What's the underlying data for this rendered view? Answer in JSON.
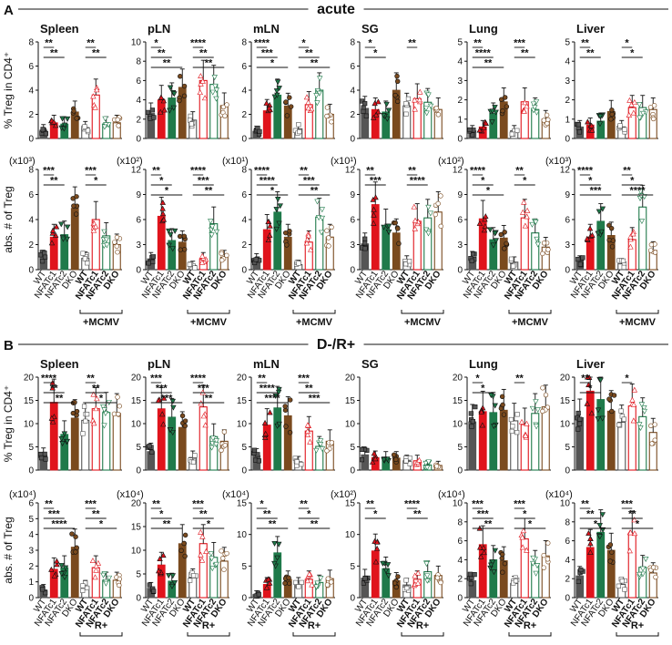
{
  "colors": {
    "WT": "#555555",
    "NFATc1": "#e0141c",
    "NFATc2": "#1f7a4a",
    "DKO": "#7a4a1e"
  },
  "groups": [
    "WT",
    "NFATc1",
    "NFATc2",
    "DKO",
    "WT",
    "NFATc1",
    "NFATc2",
    "DKO"
  ],
  "panels": [
    {
      "letter": "A",
      "title": "acute",
      "treatment_label": "+MCMV",
      "row1_ylabel": "% Treg in CD4⁺",
      "row2_ylabel": "abs. # of Treg",
      "row1": [
        {
          "organ": "Spleen",
          "ymax": 8,
          "ticks": [
            "0",
            "2",
            "4",
            "6",
            "8"
          ],
          "values": [
            0.7,
            1.3,
            1.2,
            2.2,
            0.9,
            3.6,
            1.2,
            1.3
          ],
          "sig": [
            "**",
            "**",
            "**",
            "**"
          ]
        },
        {
          "organ": "pLN",
          "ymax": 10,
          "ticks": [
            "0",
            "2",
            "4",
            "6",
            "8",
            "10"
          ],
          "values": [
            2.6,
            4.0,
            4.2,
            5.3,
            1.9,
            6.0,
            5.6,
            3.4
          ],
          "sig": [
            "*",
            "**",
            "**",
            "****",
            "**",
            "**"
          ]
        },
        {
          "organ": "mLN",
          "ymax": 8,
          "ticks": [
            "0",
            "2",
            "4",
            "6",
            "8"
          ],
          "values": [
            0.6,
            2.3,
            3.6,
            2.7,
            0.8,
            2.8,
            4.0,
            2.0
          ],
          "sig": [
            "****",
            "***",
            "*",
            "*",
            "**",
            "**"
          ]
        },
        {
          "organ": "SG",
          "ymax": 8,
          "ticks": [
            "0",
            "2",
            "4",
            "6",
            "8"
          ],
          "values": [
            2.5,
            2.4,
            2.2,
            4.0,
            2.7,
            3.3,
            3.0,
            2.4
          ],
          "sig": [
            "*",
            "*",
            "**"
          ]
        },
        {
          "organ": "Lung",
          "ymax": 5,
          "ticks": [
            "0",
            "1",
            "2",
            "3",
            "4",
            "5"
          ],
          "values": [
            0.4,
            0.6,
            1.3,
            1.9,
            0.4,
            1.9,
            1.5,
            1.0
          ],
          "sig": [
            "**",
            "****",
            "**",
            "***",
            "**"
          ]
        },
        {
          "organ": "Liver",
          "ymax": 5,
          "ticks": [
            "0",
            "1",
            "2",
            "3",
            "4",
            "5"
          ],
          "values": [
            0.6,
            0.7,
            0.9,
            1.4,
            0.6,
            1.6,
            1.6,
            1.5
          ],
          "sig": [
            "**",
            "**",
            "*",
            "*"
          ]
        }
      ],
      "row2": [
        {
          "mult": "(x10³)",
          "ymax": 8,
          "ticks": [
            "0",
            "2",
            "4",
            "6",
            "8"
          ],
          "values": [
            1.0,
            2.6,
            2.8,
            4.9,
            0.9,
            4.0,
            2.7,
            2.0
          ],
          "sig": [
            "***",
            "**",
            "***",
            "*"
          ]
        },
        {
          "mult": "(x10²)",
          "ymax": 12,
          "ticks": [
            "0",
            "3",
            "6",
            "9",
            "12"
          ],
          "values": [
            1.3,
            6.4,
            3.5,
            3.3,
            0.5,
            1.3,
            5.5,
            1.5
          ],
          "sig": [
            "**",
            "*",
            "*",
            "****",
            "***",
            "**"
          ]
        },
        {
          "mult": "(x10¹)",
          "ymax": 8,
          "ticks": [
            "0",
            "2",
            "4",
            "6",
            "8"
          ],
          "values": [
            0.8,
            3.2,
            4.6,
            2.6,
            0.4,
            2.2,
            4.2,
            2.6
          ],
          "sig": [
            "****",
            "****",
            "*",
            "**",
            "***",
            "**"
          ]
        },
        {
          "mult": "(x10¹)",
          "ymax": 12,
          "ticks": [
            "0",
            "3",
            "6",
            "9",
            "12"
          ],
          "values": [
            3.1,
            7.8,
            5.3,
            4.4,
            1.0,
            5.8,
            6.2,
            6.9
          ],
          "sig": [
            "**",
            "***",
            "**",
            "****"
          ]
        },
        {
          "mult": "(x10²)",
          "ymax": 12,
          "ticks": [
            "0",
            "3",
            "6",
            "9",
            "12"
          ],
          "values": [
            1.4,
            6.1,
            3.6,
            3.8,
            0.9,
            6.2,
            4.4,
            2.7
          ],
          "sig": [
            "****",
            "*",
            "*",
            "**",
            "*"
          ]
        },
        {
          "mult": "(x10³)",
          "ymax": 12,
          "ticks": [
            "0",
            "3",
            "6",
            "9",
            "12"
          ],
          "values": [
            1.0,
            3.9,
            5.8,
            4.1,
            0.7,
            3.6,
            7.5,
            2.3
          ],
          "sig": [
            "****",
            "*",
            "***",
            "**",
            "*",
            "****"
          ]
        }
      ]
    },
    {
      "letter": "B",
      "title": "D-/R+",
      "treatment_label": "R+",
      "row1_ylabel": "% Treg in CD4⁺",
      "row2_ylabel": "abs. # of Treg",
      "row1": [
        {
          "organ": "Spleen",
          "ymax": 20,
          "ticks": [
            "0",
            "5",
            "10",
            "15",
            "20"
          ],
          "values": [
            3.2,
            14.6,
            7.7,
            11.2,
            10.7,
            13.2,
            12.4,
            12.2
          ],
          "sig": [
            "****",
            "**",
            "**",
            "**",
            "**",
            "*"
          ]
        },
        {
          "organ": "pLN",
          "ymax": 20,
          "ticks": [
            "0",
            "5",
            "10",
            "15",
            "20"
          ],
          "values": [
            4.0,
            13.2,
            11.4,
            9.2,
            2.7,
            13.6,
            7.2,
            6.2
          ],
          "sig": [
            "***",
            "***",
            "***",
            "****",
            "***",
            "**"
          ]
        },
        {
          "organ": "mLN",
          "ymax": 20,
          "ticks": [
            "0",
            "5",
            "10",
            "15",
            "20"
          ],
          "values": [
            3.1,
            9.7,
            13.4,
            11.7,
            1.8,
            8.4,
            5.1,
            6.2
          ],
          "sig": [
            "**",
            "****",
            "****",
            "***",
            "**",
            "***"
          ]
        },
        {
          "organ": "SG",
          "ymax": 20,
          "ticks": [
            "0",
            "5",
            "10",
            "15",
            "20"
          ],
          "values": [
            3.3,
            2.7,
            2.6,
            2.6,
            2.0,
            2.0,
            1.1,
            1.0
          ],
          "sig": []
        },
        {
          "organ": "Lung",
          "ymax": 20,
          "ticks": [
            "0",
            "5",
            "10",
            "15",
            "20"
          ],
          "values": [
            10.4,
            12.6,
            12.4,
            12.9,
            10.6,
            9.8,
            12.2,
            13.6
          ],
          "sig": [
            "*",
            "*",
            "**"
          ]
        },
        {
          "organ": "Liver",
          "ymax": 20,
          "ticks": [
            "0",
            "5",
            "10",
            "15",
            "20"
          ],
          "values": [
            11.3,
            17.0,
            15.2,
            12.7,
            10.3,
            13.8,
            11.5,
            8.1
          ],
          "sig": [
            "**",
            "*",
            "*"
          ]
        }
      ],
      "row2": [
        {
          "mult": "(x10⁴)",
          "ymax": 6,
          "ticks": [
            "0",
            "1",
            "2",
            "3",
            "4",
            "5",
            "6"
          ],
          "values": [
            0.5,
            1.8,
            1.9,
            3.2,
            0.7,
            1.9,
            1.1,
            1.1
          ],
          "sig": [
            "**",
            "***",
            "****",
            "***",
            "**",
            "*"
          ]
        },
        {
          "mult": "(x10⁴)",
          "ymax": 20,
          "ticks": [
            "0",
            "5",
            "10",
            "15",
            "20"
          ],
          "values": [
            2.0,
            6.9,
            3.5,
            11.4,
            4.2,
            11.4,
            8.5,
            7.7
          ],
          "sig": [
            "**",
            "*",
            "**",
            "***",
            "**",
            "*"
          ]
        },
        {
          "mult": "(x10⁴)",
          "ymax": 15,
          "ticks": [
            "0",
            "5",
            "10",
            "15"
          ],
          "values": [
            0.5,
            2.1,
            7.1,
            2.9,
            2.1,
            2.9,
            2.4,
            3.0
          ],
          "sig": [
            "*",
            "**",
            "**",
            "**",
            "*",
            "**"
          ]
        },
        {
          "mult": "(x10²)",
          "ymax": 15,
          "ticks": [
            "0",
            "5",
            "10",
            "15"
          ],
          "values": [
            3.1,
            7.4,
            4.6,
            2.7,
            2.0,
            2.9,
            4.1,
            3.5
          ],
          "sig": [
            "**",
            "*",
            "****",
            "**"
          ]
        },
        {
          "mult": "(x10⁴)",
          "ymax": 10,
          "ticks": [
            "0",
            "2",
            "4",
            "6",
            "8",
            "10"
          ],
          "values": [
            1.8,
            5.6,
            4.0,
            3.9,
            1.5,
            6.2,
            3.6,
            4.4
          ],
          "sig": [
            "***",
            "***",
            "**",
            "***",
            "*",
            "*"
          ]
        },
        {
          "mult": "(x10⁴)",
          "ymax": 10,
          "ticks": [
            "0",
            "2",
            "4",
            "6",
            "8",
            "10"
          ],
          "values": [
            2.3,
            5.3,
            6.9,
            5.0,
            1.4,
            6.8,
            3.2,
            2.6
          ],
          "sig": [
            "**",
            "**",
            "*",
            "***",
            "**",
            "*"
          ]
        }
      ]
    }
  ],
  "chart_data": [
    {
      "type": "bar",
      "title": "A  acute",
      "categories": [
        "WT",
        "NFATc1",
        "NFATc2",
        "DKO",
        "WT +MCMV",
        "NFATc1 +MCMV",
        "NFATc2 +MCMV",
        "DKO +MCMV"
      ],
      "ylabel": "% Treg in CD4⁺ / abs. # of Treg",
      "series": [
        {
          "name": "Spleen %Treg",
          "values": [
            0.7,
            1.3,
            1.2,
            2.2,
            0.9,
            3.6,
            1.2,
            1.3
          ]
        },
        {
          "name": "pLN %Treg",
          "values": [
            2.6,
            4.0,
            4.2,
            5.3,
            1.9,
            6.0,
            5.6,
            3.4
          ]
        },
        {
          "name": "mLN %Treg",
          "values": [
            0.6,
            2.3,
            3.6,
            2.7,
            0.8,
            2.8,
            4.0,
            2.0
          ]
        },
        {
          "name": "SG %Treg",
          "values": [
            2.5,
            2.4,
            2.2,
            4.0,
            2.7,
            3.3,
            3.0,
            2.4
          ]
        },
        {
          "name": "Lung %Treg",
          "values": [
            0.4,
            0.6,
            1.3,
            1.9,
            0.4,
            1.9,
            1.5,
            1.0
          ]
        },
        {
          "name": "Liver %Treg",
          "values": [
            0.6,
            0.7,
            0.9,
            1.4,
            0.6,
            1.6,
            1.6,
            1.5
          ]
        },
        {
          "name": "Spleen abs # (x10^3)",
          "values": [
            1.0,
            2.6,
            2.8,
            4.9,
            0.9,
            4.0,
            2.7,
            2.0
          ]
        },
        {
          "name": "pLN abs # (x10^2)",
          "values": [
            1.3,
            6.4,
            3.5,
            3.3,
            0.5,
            1.3,
            5.5,
            1.5
          ]
        },
        {
          "name": "mLN abs # (x10^1)",
          "values": [
            0.8,
            3.2,
            4.6,
            2.6,
            0.4,
            2.2,
            4.2,
            2.6
          ]
        },
        {
          "name": "SG abs # (x10^1)",
          "values": [
            3.1,
            7.8,
            5.3,
            4.4,
            1.0,
            5.8,
            6.2,
            6.9
          ]
        },
        {
          "name": "Lung abs # (x10^2)",
          "values": [
            1.4,
            6.1,
            3.6,
            3.8,
            0.9,
            6.2,
            4.4,
            2.7
          ]
        },
        {
          "name": "Liver abs # (x10^3)",
          "values": [
            1.0,
            3.9,
            5.8,
            4.1,
            0.7,
            3.6,
            7.5,
            2.3
          ]
        }
      ]
    },
    {
      "type": "bar",
      "title": "B  D-/R+",
      "categories": [
        "WT",
        "NFATc1",
        "NFATc2",
        "DKO",
        "WT R+",
        "NFATc1 R+",
        "NFATc2 R+",
        "DKO R+"
      ],
      "ylabel": "% Treg in CD4⁺ / abs. # of Treg",
      "series": [
        {
          "name": "Spleen %Treg",
          "values": [
            3.2,
            14.6,
            7.7,
            11.2,
            10.7,
            13.2,
            12.4,
            12.2
          ]
        },
        {
          "name": "pLN %Treg",
          "values": [
            4.0,
            13.2,
            11.4,
            9.2,
            2.7,
            13.6,
            7.2,
            6.2
          ]
        },
        {
          "name": "mLN %Treg",
          "values": [
            3.1,
            9.7,
            13.4,
            11.7,
            1.8,
            8.4,
            5.1,
            6.2
          ]
        },
        {
          "name": "SG %Treg",
          "values": [
            3.3,
            2.7,
            2.6,
            2.6,
            2.0,
            2.0,
            1.1,
            1.0
          ]
        },
        {
          "name": "Lung %Treg",
          "values": [
            10.4,
            12.6,
            12.4,
            12.9,
            10.6,
            9.8,
            12.2,
            13.6
          ]
        },
        {
          "name": "Liver %Treg",
          "values": [
            11.3,
            17.0,
            15.2,
            12.7,
            10.3,
            13.8,
            11.5,
            8.1
          ]
        },
        {
          "name": "Spleen abs # (x10^4)",
          "values": [
            0.5,
            1.8,
            1.9,
            3.2,
            0.7,
            1.9,
            1.1,
            1.1
          ]
        },
        {
          "name": "pLN abs # (x10^4)",
          "values": [
            2.0,
            6.9,
            3.5,
            11.4,
            4.2,
            11.4,
            8.5,
            7.7
          ]
        },
        {
          "name": "mLN abs # (x10^4)",
          "values": [
            0.5,
            2.1,
            7.1,
            2.9,
            2.1,
            2.9,
            2.4,
            3.0
          ]
        },
        {
          "name": "SG abs # (x10^2)",
          "values": [
            3.1,
            7.4,
            4.6,
            2.7,
            2.0,
            2.9,
            4.1,
            3.5
          ]
        },
        {
          "name": "Lung abs # (x10^4)",
          "values": [
            1.8,
            5.6,
            4.0,
            3.9,
            1.5,
            6.2,
            3.6,
            4.4
          ]
        },
        {
          "name": "Liver abs # (x10^4)",
          "values": [
            2.3,
            5.3,
            6.9,
            5.0,
            1.4,
            6.8,
            3.2,
            2.6
          ]
        }
      ]
    }
  ]
}
